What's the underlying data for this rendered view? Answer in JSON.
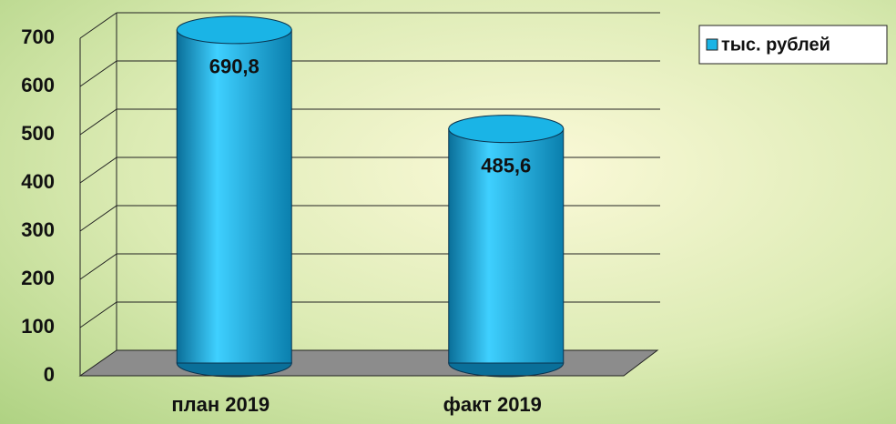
{
  "chart_data": {
    "type": "bar",
    "categories": [
      "план 2019",
      "факт 2019"
    ],
    "series": [
      {
        "name": "тыс. рублей",
        "color": "#1ab4e6",
        "values": [
          690.8,
          485.6
        ],
        "value_labels": [
          "690,8",
          "485,6"
        ]
      }
    ],
    "ylim": [
      0,
      700
    ],
    "yticks": [
      0,
      100,
      200,
      300,
      400,
      500,
      600,
      700
    ],
    "grid": true,
    "legend": "top-right"
  }
}
